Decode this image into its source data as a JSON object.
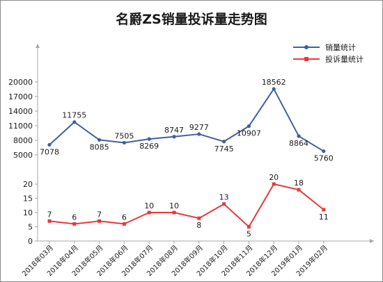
{
  "chart_data": {
    "type": "line",
    "title": "名爵ZS销量投诉量走势图",
    "categories": [
      "2018年03月",
      "2018年04月",
      "2018年05月",
      "2018年06月",
      "2018年07月",
      "2018年08月",
      "2018年09月",
      "2018年10月",
      "2018年11月",
      "2018年12月",
      "2019年01月",
      "2019年02月"
    ],
    "legend_position": "top-right",
    "grid": false,
    "panels": [
      {
        "name": "销量统计",
        "color": "#3f5f9f",
        "marker_color": "#3f5f9f",
        "values": [
          7078,
          11755,
          8085,
          7505,
          8269,
          8747,
          9277,
          7745,
          10907,
          18562,
          8864,
          5760
        ],
        "y_ticks": [
          5000,
          8000,
          11000,
          14000,
          17000,
          20000
        ],
        "ylim": [
          5000,
          20000
        ],
        "label_pos": [
          "below",
          "above",
          "below",
          "above",
          "below",
          "above",
          "above",
          "below",
          "below",
          "above",
          "below",
          "below"
        ]
      },
      {
        "name": "投诉量统计",
        "color": "#e8393b",
        "marker_color": "#e8393b",
        "values": [
          7,
          6,
          7,
          6,
          10,
          10,
          8,
          13,
          5,
          20,
          18,
          11
        ],
        "y_ticks": [
          0,
          5,
          10,
          15,
          20
        ],
        "ylim": [
          0,
          20
        ],
        "label_pos": [
          "above",
          "above",
          "above",
          "above",
          "above",
          "above",
          "below",
          "above",
          "below",
          "above",
          "above",
          "below"
        ]
      }
    ]
  }
}
